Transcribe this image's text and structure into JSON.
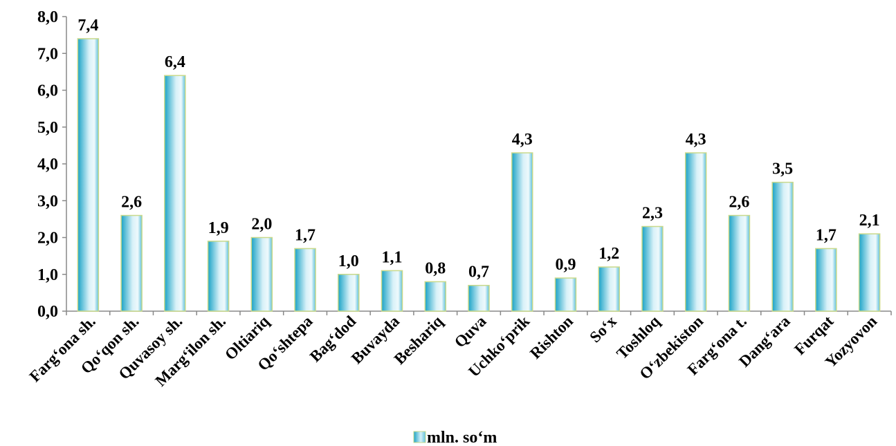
{
  "chart_data": {
    "type": "bar",
    "categories": [
      "Farg‘ona sh.",
      "Qo‘qon sh.",
      "Quvasoy sh.",
      "Marg‘ilon sh.",
      "Oltiariq",
      "Qo‘shtepa",
      "Bag‘dod",
      "Buvayda",
      "Beshariq",
      "Quva",
      "Uchko‘prik",
      "Rishton",
      "So‘x",
      "Toshloq",
      "O‘zbekiston",
      "Farg‘ona t.",
      "Dang‘ara",
      "Furqat",
      "Yozyovon"
    ],
    "series": [
      {
        "name": "mln. so‘m",
        "values": [
          7.4,
          2.6,
          6.4,
          1.9,
          2.0,
          1.7,
          1.0,
          1.1,
          0.8,
          0.7,
          4.3,
          0.9,
          1.2,
          2.3,
          4.3,
          2.6,
          3.5,
          1.7,
          2.1
        ],
        "labels": [
          "7,4",
          "2,6",
          "6,4",
          "1,9",
          "2,0",
          "1,7",
          "1,0",
          "1,1",
          "0,8",
          "0,7",
          "4,3",
          "0,9",
          "1,2",
          "2,3",
          "4,3",
          "2,6",
          "3,5",
          "1,7",
          "2,1"
        ]
      }
    ],
    "ylim": [
      0,
      8
    ],
    "yticks": [
      "0,0",
      "1,0",
      "2,0",
      "3,0",
      "4,0",
      "5,0",
      "6,0",
      "7,0",
      "8,0"
    ],
    "grid": false,
    "legend_position": "bottom",
    "bar_color_dark": "#1ba3c6",
    "bar_color_light": "#eef9fc",
    "bar_outline": "#c9d98a"
  }
}
